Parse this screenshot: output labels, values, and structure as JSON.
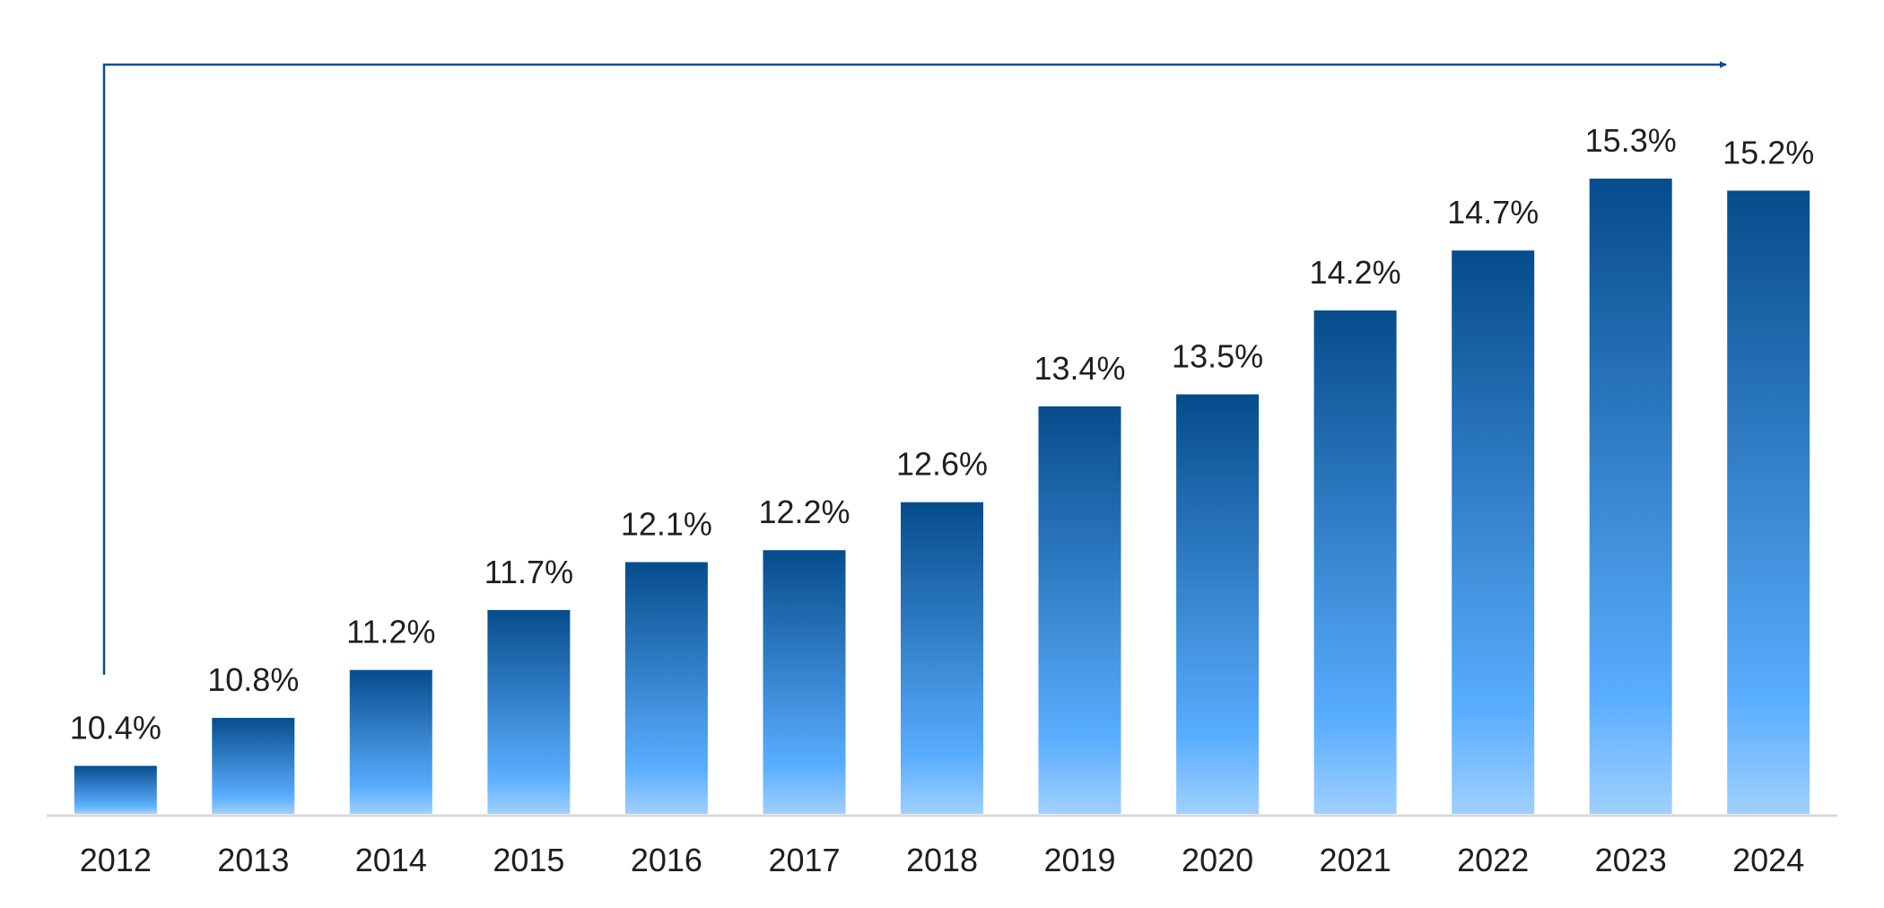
{
  "chart_data": {
    "type": "bar",
    "title": "",
    "xlabel": "",
    "ylabel": "",
    "categories": [
      "2012",
      "2013",
      "2014",
      "2015",
      "2016",
      "2017",
      "2018",
      "2019",
      "2020",
      "2021",
      "2022",
      "2023",
      "2024"
    ],
    "values": [
      10.4,
      10.8,
      11.2,
      11.7,
      12.1,
      12.2,
      12.6,
      13.4,
      13.5,
      14.2,
      14.7,
      15.3,
      15.2
    ],
    "value_labels": [
      "10.4%",
      "10.8%",
      "11.2%",
      "11.7%",
      "12.1%",
      "12.2%",
      "12.6%",
      "13.4%",
      "13.5%",
      "14.2%",
      "14.7%",
      "15.3%",
      "15.2%"
    ],
    "value_unit": "%",
    "ylim": [
      10.0,
      15.75
    ],
    "grid": false,
    "legend": "none",
    "annotation": "trend arrow from 2012 to 2024",
    "colors": {
      "bar_top": "#064c8c",
      "bar_mid": "#5aaeff",
      "bar_bottom": "#9fd0ff",
      "arrow": "#0b4f8a",
      "axis": "#d9d9d9",
      "text": "#1f1f1f"
    }
  }
}
